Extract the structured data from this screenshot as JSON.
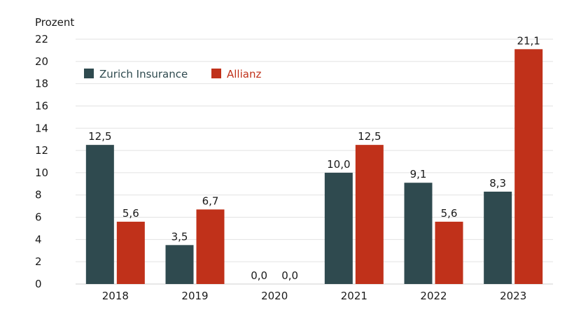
{
  "chart_data": {
    "type": "bar",
    "unit_label": "Prozent",
    "categories": [
      "2018",
      "2019",
      "2020",
      "2021",
      "2022",
      "2023"
    ],
    "series": [
      {
        "name": "Zurich Insurance",
        "color": "#2f4a4f",
        "values": [
          12.5,
          3.5,
          0.0,
          10.0,
          9.1,
          8.3
        ],
        "labels": [
          "12,5",
          "3,5",
          "0,0",
          "10,0",
          "9,1",
          "8,3"
        ]
      },
      {
        "name": "Allianz",
        "color": "#c0311a",
        "values": [
          5.6,
          6.7,
          0.0,
          12.5,
          5.6,
          21.1
        ],
        "labels": [
          "5,6",
          "6,7",
          "0,0",
          "12,5",
          "5,6",
          "21,1"
        ]
      }
    ],
    "ylim": [
      0,
      22
    ],
    "yticks": [
      0,
      2,
      4,
      6,
      8,
      10,
      12,
      14,
      16,
      18,
      20,
      22
    ],
    "grid": true,
    "legend_position": "top-left"
  }
}
